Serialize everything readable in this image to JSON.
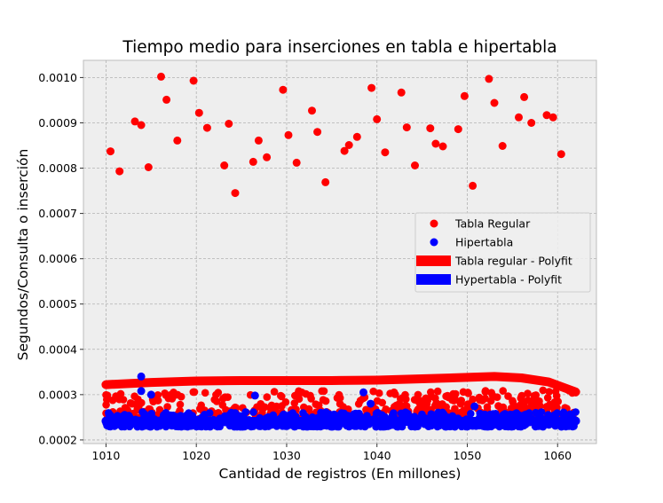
{
  "chart_data": {
    "type": "scatter",
    "title": "Tiempo medio para inserciones en tabla e hipertabla",
    "xlabel": "Cantidad de registros (En millones)",
    "ylabel": "Segundos/Consulta o inserción",
    "xlim": [
      1007.5,
      1064.3
    ],
    "ylim": [
      0.000192,
      0.001038
    ],
    "xticks": [
      1010,
      1020,
      1030,
      1040,
      1050,
      1060
    ],
    "yticks": [
      0.0002,
      0.0003,
      0.0004,
      0.0005,
      0.0006,
      0.0007,
      0.0008,
      0.0009,
      0.001
    ],
    "xtick_labels": [
      "1010",
      "1020",
      "1030",
      "1040",
      "1050",
      "1060"
    ],
    "ytick_labels": [
      "0.0002",
      "0.0003",
      "0.0004",
      "0.0005",
      "0.0006",
      "0.0007",
      "0.0008",
      "0.0009",
      "0.0010"
    ],
    "grid": true,
    "legend_position": "center-right",
    "background": "#eeeeee",
    "series": [
      {
        "name": "Tabla Regular",
        "kind": "scatter",
        "color": "#ff0000",
        "points": [
          [
            1010.5,
            0.000837
          ],
          [
            1011.5,
            0.000793
          ],
          [
            1013.2,
            0.000903
          ],
          [
            1013.9,
            0.000895
          ],
          [
            1014.7,
            0.000802
          ],
          [
            1016.1,
            0.001002
          ],
          [
            1016.7,
            0.000951
          ],
          [
            1017.9,
            0.000861
          ],
          [
            1019.7,
            0.000993
          ],
          [
            1020.3,
            0.000922
          ],
          [
            1021.2,
            0.000889
          ],
          [
            1023.1,
            0.000806
          ],
          [
            1023.6,
            0.000898
          ],
          [
            1024.3,
            0.000745
          ],
          [
            1026.3,
            0.000814
          ],
          [
            1026.9,
            0.000861
          ],
          [
            1027.8,
            0.000824
          ],
          [
            1029.6,
            0.000973
          ],
          [
            1030.2,
            0.000873
          ],
          [
            1031.1,
            0.000812
          ],
          [
            1032.8,
            0.000927
          ],
          [
            1033.4,
            0.00088
          ],
          [
            1034.3,
            0.000769
          ],
          [
            1036.4,
            0.000838
          ],
          [
            1036.9,
            0.000851
          ],
          [
            1037.8,
            0.000869
          ],
          [
            1039.4,
            0.000977
          ],
          [
            1040.0,
            0.000908
          ],
          [
            1040.9,
            0.000835
          ],
          [
            1042.7,
            0.000967
          ],
          [
            1043.3,
            0.00089
          ],
          [
            1044.2,
            0.000806
          ],
          [
            1045.9,
            0.000888
          ],
          [
            1046.5,
            0.000854
          ],
          [
            1047.3,
            0.000848
          ],
          [
            1049.0,
            0.000886
          ],
          [
            1049.7,
            0.000959
          ],
          [
            1050.6,
            0.000761
          ],
          [
            1052.4,
            0.000997
          ],
          [
            1053.0,
            0.000944
          ],
          [
            1053.9,
            0.000849
          ],
          [
            1055.7,
            0.000912
          ],
          [
            1056.3,
            0.000957
          ],
          [
            1057.1,
            0.0009
          ],
          [
            1058.8,
            0.000917
          ],
          [
            1059.5,
            0.000912
          ],
          [
            1060.4,
            0.000831
          ]
        ]
      },
      {
        "name": "Hipertabla",
        "kind": "scatter",
        "color": "#0000ff",
        "points": [
          [
            1013.9,
            0.00034
          ],
          [
            1013.9,
            0.000308
          ],
          [
            1015.0,
            0.0003
          ],
          [
            1026.5,
            0.000298
          ],
          [
            1038.5,
            0.000305
          ],
          [
            1039.3,
            0.00028
          ],
          [
            1050.8,
            0.000274
          ],
          [
            1010.5,
            0.000235
          ],
          [
            1020.0,
            0.000234
          ],
          [
            1030.0,
            0.000233
          ],
          [
            1040.0,
            0.000234
          ],
          [
            1050.0,
            0.000235
          ],
          [
            1060.0,
            0.000236
          ]
        ]
      },
      {
        "name": "Tabla regular - Polyfit",
        "kind": "line",
        "color": "#ff0000",
        "points": [
          [
            1010,
            0.000322
          ],
          [
            1015,
            0.000327
          ],
          [
            1020,
            0.00033
          ],
          [
            1025,
            0.000331
          ],
          [
            1030,
            0.000331
          ],
          [
            1035,
            0.000331
          ],
          [
            1040,
            0.000332
          ],
          [
            1045,
            0.000335
          ],
          [
            1050,
            0.000338
          ],
          [
            1053,
            0.00034
          ],
          [
            1056,
            0.000337
          ],
          [
            1059,
            0.000328
          ],
          [
            1062,
            0.000306
          ]
        ]
      },
      {
        "name": "Hypertabla - Polyfit",
        "kind": "line",
        "color": "#0000ff",
        "points": [
          [
            1010,
            0.000242
          ],
          [
            1020,
            0.000241
          ],
          [
            1030,
            0.000241
          ],
          [
            1040,
            0.000241
          ],
          [
            1050,
            0.000241
          ],
          [
            1062,
            0.000242
          ]
        ]
      }
    ],
    "dense_bands": [
      {
        "series": "Tabla Regular",
        "color": "#ff0000",
        "x_range": [
          1010,
          1062
        ],
        "y_range": [
          0.00024,
          0.00031
        ]
      },
      {
        "series": "Hipertabla",
        "color": "#0000ff",
        "x_range": [
          1010,
          1062
        ],
        "y_range": [
          0.000229,
          0.000262
        ]
      }
    ]
  }
}
